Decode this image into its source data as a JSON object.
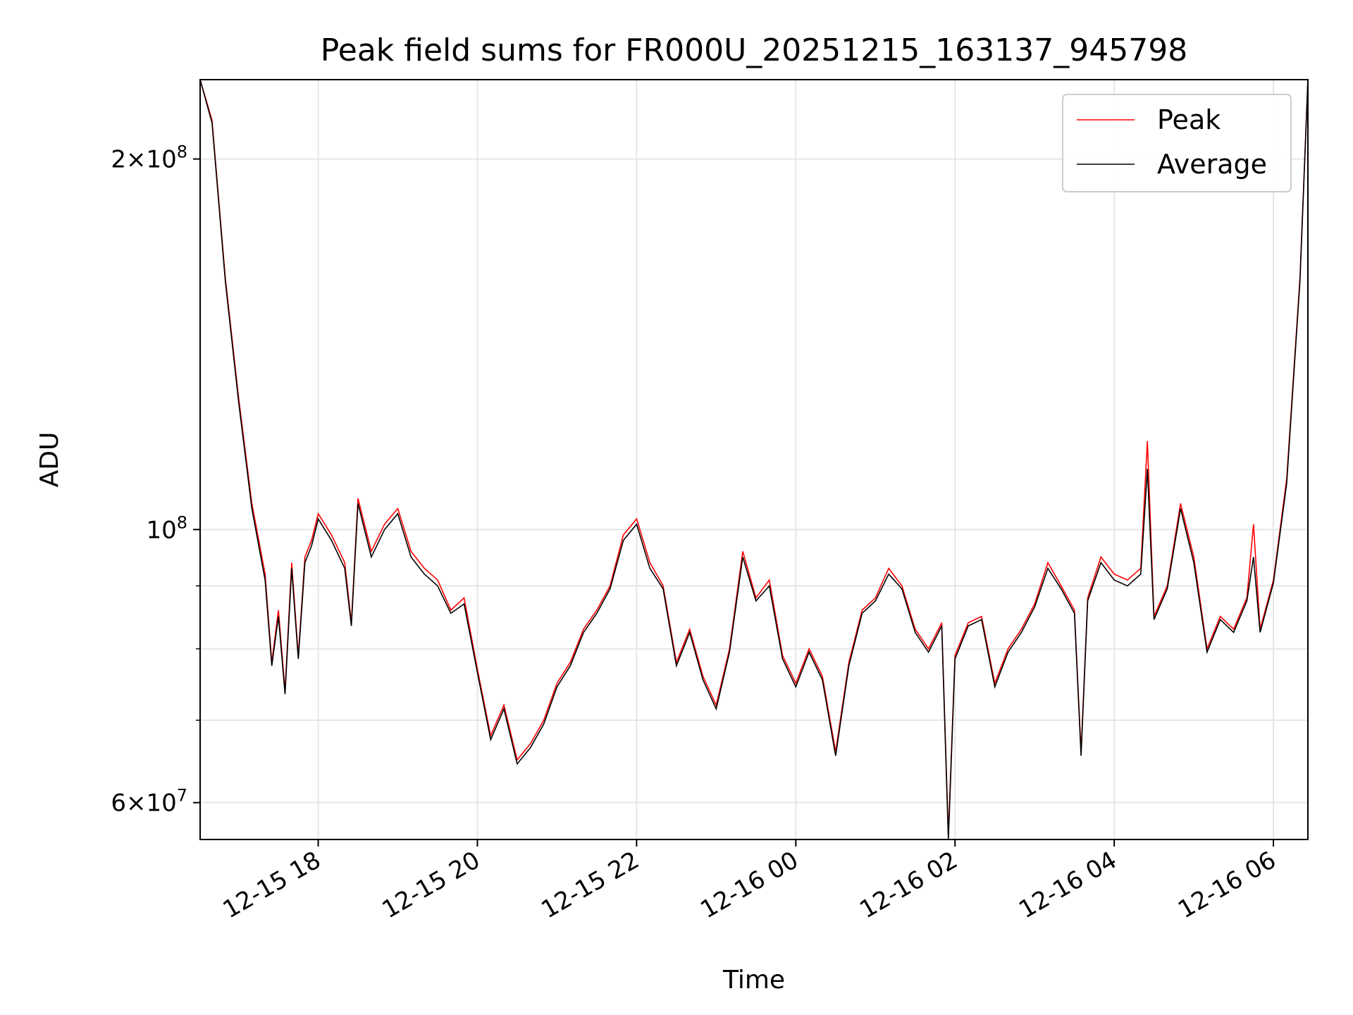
{
  "chart_data": {
    "type": "line",
    "title": "Peak field sums for FR000U_20251215_163137_945798",
    "xlabel": "Time",
    "ylabel": "ADU",
    "y_scale": "log",
    "ylim": [
      56000000,
      232000000
    ],
    "xlim": [
      "2025-12-15 16:31",
      "2025-12-16 06:26"
    ],
    "grid": true,
    "legend_position": "upper right",
    "x_ticks": [
      {
        "at": "2025-12-15 18:00",
        "label": "12-15 18"
      },
      {
        "at": "2025-12-15 20:00",
        "label": "12-15 20"
      },
      {
        "at": "2025-12-15 22:00",
        "label": "12-15 22"
      },
      {
        "at": "2025-12-16 00:00",
        "label": "12-16 00"
      },
      {
        "at": "2025-12-16 02:00",
        "label": "12-16 02"
      },
      {
        "at": "2025-12-16 04:00",
        "label": "12-16 04"
      },
      {
        "at": "2025-12-16 06:00",
        "label": "12-16 06"
      }
    ],
    "y_ticks": [
      {
        "value": 60000000,
        "mantissa": "6",
        "exp": "7"
      },
      {
        "value": 100000000,
        "mantissa": "",
        "exp": "8"
      },
      {
        "value": 200000000,
        "mantissa": "2",
        "exp": "8"
      }
    ],
    "y_minor_ticks": [
      70000000,
      80000000,
      90000000
    ],
    "series": [
      {
        "name": "Peak",
        "color": "#ff0000",
        "x": [
          "2025-12-15 16:31",
          "2025-12-15 16:40",
          "2025-12-15 16:50",
          "2025-12-15 17:00",
          "2025-12-15 17:10",
          "2025-12-15 17:20",
          "2025-12-15 17:25",
          "2025-12-15 17:30",
          "2025-12-15 17:35",
          "2025-12-15 17:40",
          "2025-12-15 17:45",
          "2025-12-15 17:50",
          "2025-12-15 17:55",
          "2025-12-15 18:00",
          "2025-12-15 18:10",
          "2025-12-15 18:20",
          "2025-12-15 18:25",
          "2025-12-15 18:30",
          "2025-12-15 18:40",
          "2025-12-15 18:50",
          "2025-12-15 19:00",
          "2025-12-15 19:10",
          "2025-12-15 19:20",
          "2025-12-15 19:30",
          "2025-12-15 19:40",
          "2025-12-15 19:50",
          "2025-12-15 20:00",
          "2025-12-15 20:10",
          "2025-12-15 20:20",
          "2025-12-15 20:30",
          "2025-12-15 20:40",
          "2025-12-15 20:50",
          "2025-12-15 21:00",
          "2025-12-15 21:10",
          "2025-12-15 21:20",
          "2025-12-15 21:30",
          "2025-12-15 21:40",
          "2025-12-15 21:50",
          "2025-12-15 22:00",
          "2025-12-15 22:10",
          "2025-12-15 22:20",
          "2025-12-15 22:30",
          "2025-12-15 22:40",
          "2025-12-15 22:50",
          "2025-12-15 23:00",
          "2025-12-15 23:10",
          "2025-12-15 23:20",
          "2025-12-15 23:30",
          "2025-12-15 23:40",
          "2025-12-15 23:50",
          "2025-12-16 00:00",
          "2025-12-16 00:10",
          "2025-12-16 00:20",
          "2025-12-16 00:30",
          "2025-12-16 00:40",
          "2025-12-16 00:50",
          "2025-12-16 01:00",
          "2025-12-16 01:10",
          "2025-12-16 01:20",
          "2025-12-16 01:30",
          "2025-12-16 01:40",
          "2025-12-16 01:50",
          "2025-12-16 01:55",
          "2025-12-16 02:00",
          "2025-12-16 02:10",
          "2025-12-16 02:20",
          "2025-12-16 02:30",
          "2025-12-16 02:40",
          "2025-12-16 02:50",
          "2025-12-16 03:00",
          "2025-12-16 03:10",
          "2025-12-16 03:20",
          "2025-12-16 03:30",
          "2025-12-16 03:35",
          "2025-12-16 03:40",
          "2025-12-16 03:50",
          "2025-12-16 04:00",
          "2025-12-16 04:10",
          "2025-12-16 04:20",
          "2025-12-16 04:25",
          "2025-12-16 04:30",
          "2025-12-16 04:40",
          "2025-12-16 04:50",
          "2025-12-16 05:00",
          "2025-12-16 05:10",
          "2025-12-16 05:20",
          "2025-12-16 05:30",
          "2025-12-16 05:40",
          "2025-12-16 05:45",
          "2025-12-16 05:50",
          "2025-12-16 06:00",
          "2025-12-16 06:10",
          "2025-12-16 06:20",
          "2025-12-16 06:26"
        ],
        "y": [
          232000000,
          215000000,
          160000000,
          128000000,
          105000000,
          92000000,
          78000000,
          86000000,
          74000000,
          94000000,
          79000000,
          95000000,
          98000000,
          103000000,
          99000000,
          94000000,
          84000000,
          106000000,
          96000000,
          101000000,
          104000000,
          96000000,
          93000000,
          91000000,
          86000000,
          88000000,
          77000000,
          68000000,
          72000000,
          65000000,
          67000000,
          70000000,
          75000000,
          78000000,
          83000000,
          86000000,
          90000000,
          99000000,
          102000000,
          94000000,
          90000000,
          78000000,
          83000000,
          76000000,
          72000000,
          80000000,
          96000000,
          88000000,
          91000000,
          79000000,
          75000000,
          80000000,
          76000000,
          66000000,
          78000000,
          86000000,
          88000000,
          93000000,
          90000000,
          83000000,
          80000000,
          84000000,
          56500000,
          79000000,
          84000000,
          85000000,
          75000000,
          80000000,
          83000000,
          87000000,
          94000000,
          90000000,
          86000000,
          66000000,
          88000000,
          95000000,
          92000000,
          91000000,
          93000000,
          118000000,
          85000000,
          90000000,
          105000000,
          95000000,
          80000000,
          85000000,
          83000000,
          88000000,
          101000000,
          83000000,
          91000000,
          110000000,
          160000000,
          232000000
        ],
        "values_note": ""
      },
      {
        "name": "Average",
        "color": "#000000",
        "x": [
          "2025-12-15 16:31",
          "2025-12-15 16:40",
          "2025-12-15 16:50",
          "2025-12-15 17:00",
          "2025-12-15 17:10",
          "2025-12-15 17:20",
          "2025-12-15 17:25",
          "2025-12-15 17:30",
          "2025-12-15 17:35",
          "2025-12-15 17:40",
          "2025-12-15 17:45",
          "2025-12-15 17:50",
          "2025-12-15 17:55",
          "2025-12-15 18:00",
          "2025-12-15 18:10",
          "2025-12-15 18:20",
          "2025-12-15 18:25",
          "2025-12-15 18:30",
          "2025-12-15 18:40",
          "2025-12-15 18:50",
          "2025-12-15 19:00",
          "2025-12-15 19:10",
          "2025-12-15 19:20",
          "2025-12-15 19:30",
          "2025-12-15 19:40",
          "2025-12-15 19:50",
          "2025-12-15 20:00",
          "2025-12-15 20:10",
          "2025-12-15 20:20",
          "2025-12-15 20:30",
          "2025-12-15 20:40",
          "2025-12-15 20:50",
          "2025-12-15 21:00",
          "2025-12-15 21:10",
          "2025-12-15 21:20",
          "2025-12-15 21:30",
          "2025-12-15 21:40",
          "2025-12-15 21:50",
          "2025-12-15 22:00",
          "2025-12-15 22:10",
          "2025-12-15 22:20",
          "2025-12-15 22:30",
          "2025-12-15 22:40",
          "2025-12-15 22:50",
          "2025-12-15 23:00",
          "2025-12-15 23:10",
          "2025-12-15 23:20",
          "2025-12-15 23:30",
          "2025-12-15 23:40",
          "2025-12-15 23:50",
          "2025-12-16 00:00",
          "2025-12-16 00:10",
          "2025-12-16 00:20",
          "2025-12-16 00:30",
          "2025-12-16 00:40",
          "2025-12-16 00:50",
          "2025-12-16 01:00",
          "2025-12-16 01:10",
          "2025-12-16 01:20",
          "2025-12-16 01:30",
          "2025-12-16 01:40",
          "2025-12-16 01:50",
          "2025-12-16 01:55",
          "2025-12-16 02:00",
          "2025-12-16 02:10",
          "2025-12-16 02:20",
          "2025-12-16 02:30",
          "2025-12-16 02:40",
          "2025-12-16 02:50",
          "2025-12-16 03:00",
          "2025-12-16 03:10",
          "2025-12-16 03:20",
          "2025-12-16 03:30",
          "2025-12-16 03:35",
          "2025-12-16 03:40",
          "2025-12-16 03:50",
          "2025-12-16 04:00",
          "2025-12-16 04:10",
          "2025-12-16 04:20",
          "2025-12-16 04:25",
          "2025-12-16 04:30",
          "2025-12-16 04:40",
          "2025-12-16 04:50",
          "2025-12-16 05:00",
          "2025-12-16 05:10",
          "2025-12-16 05:20",
          "2025-12-16 05:30",
          "2025-12-16 05:40",
          "2025-12-16 05:45",
          "2025-12-16 05:50",
          "2025-12-16 06:00",
          "2025-12-16 06:10",
          "2025-12-16 06:20",
          "2025-12-16 06:26"
        ],
        "y": [
          232000000,
          214000000,
          159000000,
          127000000,
          104000000,
          91000000,
          77500000,
          85000000,
          73500000,
          93000000,
          78500000,
          94000000,
          97000000,
          102000000,
          98000000,
          93000000,
          83500000,
          105000000,
          95000000,
          100000000,
          103000000,
          95000000,
          92000000,
          90000000,
          85500000,
          87000000,
          76500000,
          67500000,
          71500000,
          64500000,
          66500000,
          69500000,
          74500000,
          77500000,
          82500000,
          85500000,
          89500000,
          98000000,
          101000000,
          93000000,
          89500000,
          77500000,
          82500000,
          75500000,
          71500000,
          79500000,
          95000000,
          87500000,
          90000000,
          78500000,
          74500000,
          79500000,
          75500000,
          65500000,
          77500000,
          85500000,
          87500000,
          92000000,
          89500000,
          82500000,
          79500000,
          83500000,
          56000000,
          78500000,
          83500000,
          84500000,
          74500000,
          79500000,
          82500000,
          86500000,
          93000000,
          89500000,
          85500000,
          65500000,
          87500000,
          94000000,
          91000000,
          90000000,
          92000000,
          112000000,
          84500000,
          89500000,
          104000000,
          94000000,
          79500000,
          84500000,
          82500000,
          87500000,
          95000000,
          82500000,
          90500000,
          109000000,
          159000000,
          232000000
        ]
      }
    ]
  }
}
